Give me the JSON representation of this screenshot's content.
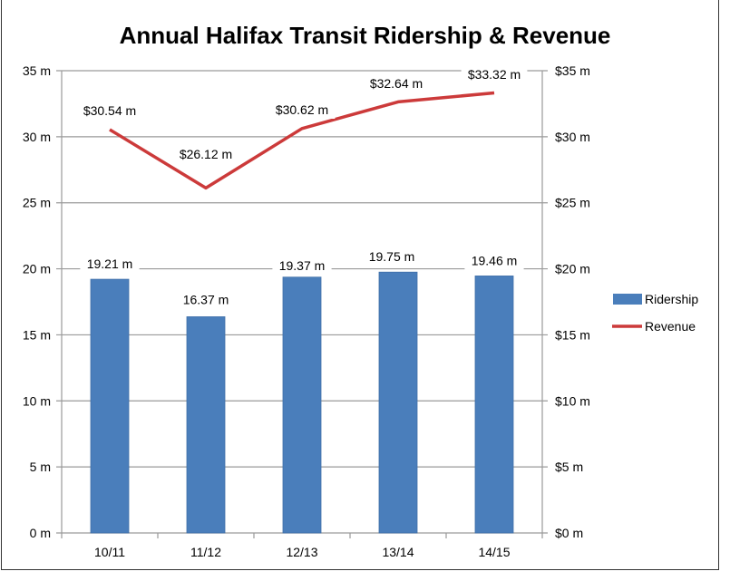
{
  "chart_data": {
    "type": "bar+line",
    "title": "Annual Halifax Transit Ridership & Revenue",
    "categories": [
      "10/11",
      "11/12",
      "12/13",
      "13/14",
      "14/15"
    ],
    "series": [
      {
        "name": "Ridership",
        "type": "bar",
        "axis": "left",
        "color": "#4a7ebb",
        "values": [
          19.21,
          16.37,
          19.37,
          19.75,
          19.46
        ],
        "labels": [
          "19.21 m",
          "16.37 m",
          "19.37 m",
          "19.75 m",
          "19.46 m"
        ]
      },
      {
        "name": "Revenue",
        "type": "line",
        "axis": "right",
        "color": "#cc3a3a",
        "values": [
          30.54,
          26.12,
          30.62,
          32.64,
          33.32
        ],
        "labels": [
          "$30.54 m",
          "$26.12 m",
          "$30.62 m",
          "$32.64 m",
          "$33.32 m"
        ]
      }
    ],
    "left_axis": {
      "ylim": [
        0,
        35
      ],
      "ticks": [
        0,
        5,
        10,
        15,
        20,
        25,
        30,
        35
      ],
      "tick_labels": [
        "0 m",
        "5 m",
        "10 m",
        "15 m",
        "20 m",
        "25 m",
        "30 m",
        "35 m"
      ]
    },
    "right_axis": {
      "ylim": [
        0,
        35
      ],
      "ticks": [
        0,
        5,
        10,
        15,
        20,
        25,
        30,
        35
      ],
      "tick_labels": [
        "$0 m",
        "$5 m",
        "$10 m",
        "$15 m",
        "$20 m",
        "$25 m",
        "$30 m",
        "$35 m"
      ]
    },
    "grid": true,
    "legend": {
      "position": "right",
      "entries": [
        "Ridership",
        "Revenue"
      ]
    }
  }
}
